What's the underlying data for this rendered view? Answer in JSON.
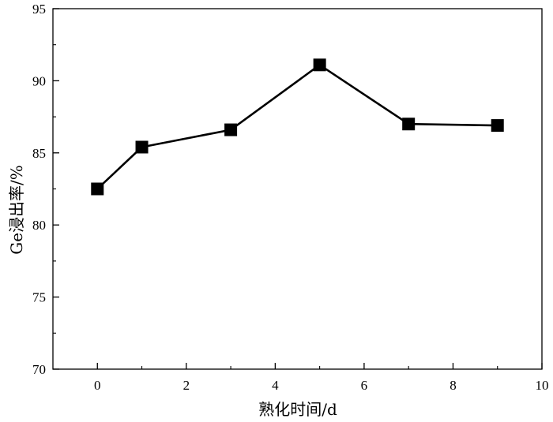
{
  "chart_data": {
    "type": "line",
    "xlabel": "熟化时间/d",
    "ylabel": "Ge浸出率/%",
    "xlim": [
      -1,
      10
    ],
    "ylim": [
      70,
      95
    ],
    "xticks": [
      0,
      2,
      4,
      6,
      8,
      10
    ],
    "yticks": [
      70,
      75,
      80,
      85,
      90,
      95
    ],
    "grid": false,
    "marker": "square",
    "color": "#000000",
    "series": [
      {
        "x": [
          0,
          1,
          3,
          5,
          7,
          9
        ],
        "y": [
          82.5,
          85.4,
          86.6,
          91.1,
          87.0,
          86.9
        ]
      }
    ]
  }
}
